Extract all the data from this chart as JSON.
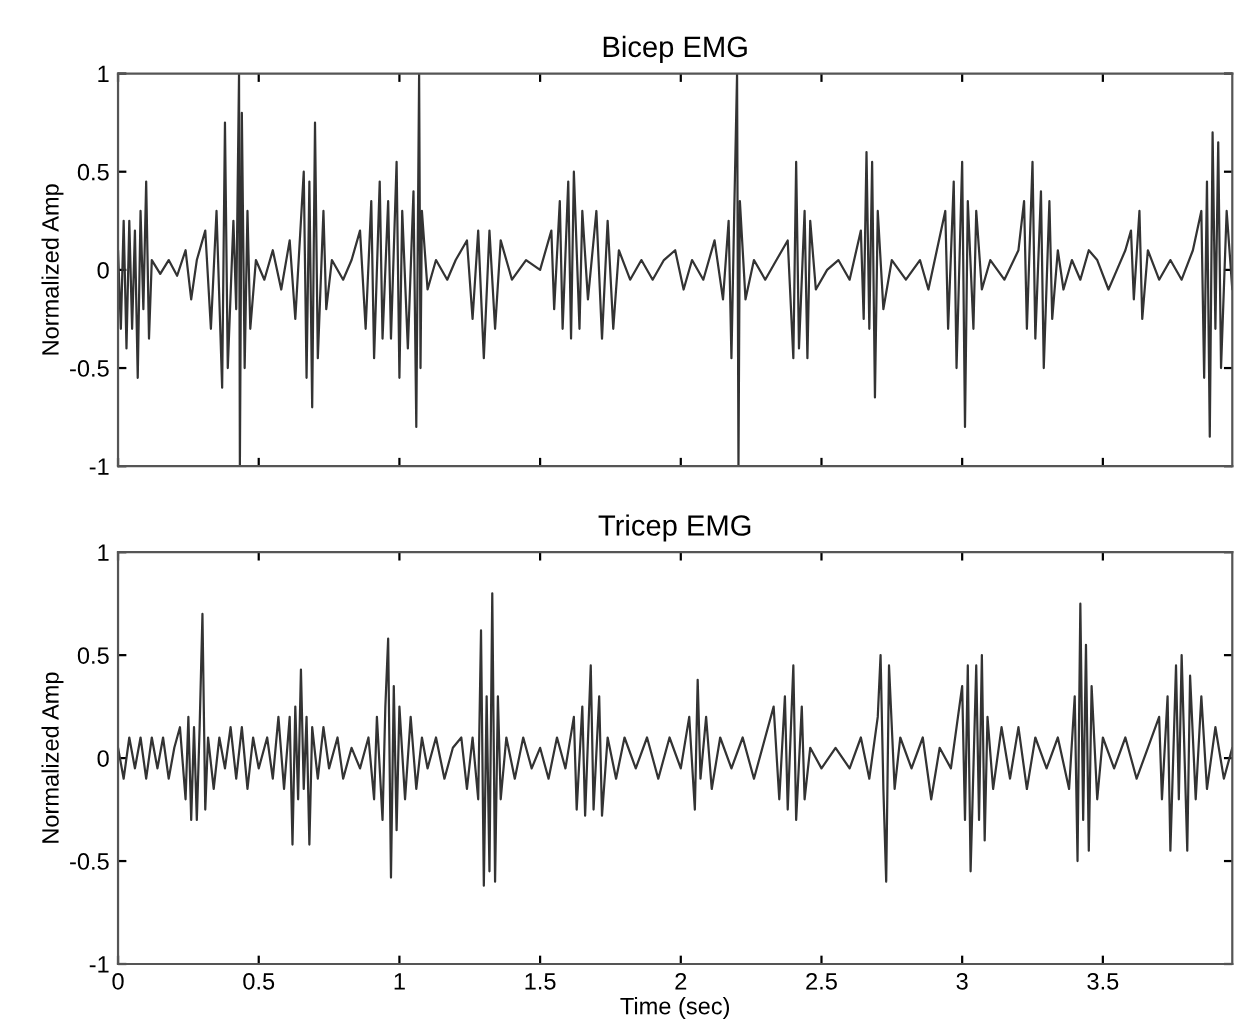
{
  "chart_data": [
    {
      "type": "line",
      "title": "Bicep EMG",
      "ylabel": "Normalized Amp",
      "xlim": [
        0,
        3.96
      ],
      "xticks": [
        0,
        0.5,
        1,
        1.5,
        2,
        2.5,
        3,
        3.5
      ],
      "ylim": [
        -1,
        1
      ],
      "yticks": [
        -1,
        -0.5,
        0,
        0.5,
        1
      ],
      "tick_labels": "y",
      "grid": false,
      "series": [
        {
          "color": "#333333",
          "x": [
            0.0,
            0.01,
            0.02,
            0.03,
            0.04,
            0.05,
            0.06,
            0.07,
            0.08,
            0.09,
            0.1,
            0.11,
            0.12,
            0.15,
            0.18,
            0.21,
            0.24,
            0.26,
            0.28,
            0.31,
            0.33,
            0.35,
            0.37,
            0.38,
            0.39,
            0.41,
            0.42,
            0.43,
            0.433,
            0.44,
            0.45,
            0.46,
            0.47,
            0.49,
            0.52,
            0.55,
            0.58,
            0.61,
            0.63,
            0.66,
            0.67,
            0.68,
            0.69,
            0.7,
            0.71,
            0.73,
            0.74,
            0.76,
            0.8,
            0.83,
            0.86,
            0.88,
            0.9,
            0.91,
            0.93,
            0.94,
            0.96,
            0.97,
            0.99,
            1.0,
            1.01,
            1.03,
            1.05,
            1.06,
            1.07,
            1.075,
            1.08,
            1.1,
            1.13,
            1.17,
            1.2,
            1.24,
            1.26,
            1.28,
            1.3,
            1.32,
            1.34,
            1.36,
            1.4,
            1.45,
            1.5,
            1.54,
            1.55,
            1.57,
            1.58,
            1.6,
            1.61,
            1.62,
            1.64,
            1.65,
            1.67,
            1.7,
            1.72,
            1.74,
            1.76,
            1.78,
            1.82,
            1.86,
            1.9,
            1.94,
            1.98,
            2.01,
            2.04,
            2.08,
            2.12,
            2.15,
            2.17,
            2.18,
            2.19,
            2.2,
            2.205,
            2.21,
            2.23,
            2.26,
            2.3,
            2.34,
            2.38,
            2.4,
            2.41,
            2.42,
            2.44,
            2.45,
            2.46,
            2.48,
            2.52,
            2.56,
            2.6,
            2.64,
            2.65,
            2.66,
            2.67,
            2.68,
            2.69,
            2.7,
            2.72,
            2.75,
            2.8,
            2.85,
            2.88,
            2.91,
            2.94,
            2.95,
            2.97,
            2.98,
            3.0,
            3.01,
            3.02,
            3.04,
            3.05,
            3.07,
            3.1,
            3.15,
            3.2,
            3.22,
            3.23,
            3.25,
            3.26,
            3.28,
            3.29,
            3.31,
            3.32,
            3.34,
            3.36,
            3.39,
            3.42,
            3.45,
            3.48,
            3.52,
            3.55,
            3.58,
            3.6,
            3.61,
            3.63,
            3.64,
            3.66,
            3.7,
            3.74,
            3.78,
            3.82,
            3.85,
            3.86,
            3.87,
            3.88,
            3.89,
            3.9,
            3.91,
            3.92,
            3.94,
            3.96
          ],
          "values": [
            0.1,
            -0.3,
            0.25,
            -0.4,
            0.25,
            -0.3,
            0.2,
            -0.55,
            0.3,
            -0.2,
            0.45,
            -0.35,
            0.05,
            -0.02,
            0.05,
            -0.03,
            0.1,
            -0.15,
            0.05,
            0.2,
            -0.3,
            0.3,
            -0.6,
            0.75,
            -0.5,
            0.25,
            -0.2,
            1.0,
            -1.0,
            0.8,
            -0.5,
            0.3,
            -0.3,
            0.05,
            -0.05,
            0.1,
            -0.1,
            0.15,
            -0.25,
            0.5,
            -0.55,
            0.45,
            -0.7,
            0.75,
            -0.45,
            0.3,
            -0.2,
            0.05,
            -0.05,
            0.05,
            0.2,
            -0.3,
            0.35,
            -0.45,
            0.45,
            -0.35,
            0.35,
            -0.35,
            0.55,
            -0.55,
            0.3,
            -0.4,
            0.4,
            -0.8,
            1.0,
            -0.5,
            0.3,
            -0.1,
            0.05,
            -0.05,
            0.05,
            0.15,
            -0.25,
            0.2,
            -0.45,
            0.2,
            -0.3,
            0.15,
            -0.05,
            0.05,
            0.0,
            0.2,
            -0.2,
            0.35,
            -0.3,
            0.45,
            -0.35,
            0.5,
            -0.3,
            0.3,
            -0.15,
            0.3,
            -0.35,
            0.25,
            -0.3,
            0.1,
            -0.05,
            0.05,
            -0.05,
            0.05,
            0.1,
            -0.1,
            0.05,
            -0.05,
            0.15,
            -0.15,
            0.25,
            -0.45,
            0.3,
            1.0,
            -1.0,
            0.35,
            -0.15,
            0.05,
            -0.05,
            0.05,
            0.15,
            -0.45,
            0.55,
            -0.4,
            0.3,
            -0.45,
            0.25,
            -0.1,
            0.0,
            0.05,
            -0.05,
            0.2,
            -0.25,
            0.6,
            -0.3,
            0.55,
            -0.65,
            0.3,
            -0.2,
            0.05,
            -0.05,
            0.05,
            -0.1,
            0.1,
            0.3,
            -0.3,
            0.45,
            -0.5,
            0.55,
            -0.8,
            0.35,
            -0.3,
            0.3,
            -0.1,
            0.05,
            -0.05,
            0.1,
            0.35,
            -0.3,
            0.55,
            -0.35,
            0.4,
            -0.5,
            0.35,
            -0.25,
            0.1,
            -0.1,
            0.05,
            -0.05,
            0.1,
            0.05,
            -0.1,
            0.0,
            0.1,
            0.2,
            -0.15,
            0.3,
            -0.25,
            0.1,
            -0.05,
            0.05,
            -0.05,
            0.1,
            0.3,
            -0.55,
            0.45,
            -0.85,
            0.7,
            -0.3,
            0.65,
            -0.5,
            0.3,
            -0.1
          ]
        }
      ]
    },
    {
      "type": "line",
      "title": "Tricep EMG",
      "xlabel": "Time (sec)",
      "ylabel": "Normalized Amp",
      "xlim": [
        0,
        3.96
      ],
      "xticks": [
        0,
        0.5,
        1,
        1.5,
        2,
        2.5,
        3,
        3.5
      ],
      "ylim": [
        -1,
        1
      ],
      "yticks": [
        -1,
        -0.5,
        0,
        0.5,
        1
      ],
      "grid": false,
      "series": [
        {
          "color": "#333333",
          "x": [
            0.0,
            0.02,
            0.04,
            0.06,
            0.08,
            0.1,
            0.12,
            0.14,
            0.16,
            0.18,
            0.2,
            0.22,
            0.24,
            0.25,
            0.26,
            0.27,
            0.28,
            0.29,
            0.3,
            0.31,
            0.32,
            0.34,
            0.36,
            0.38,
            0.4,
            0.42,
            0.44,
            0.46,
            0.48,
            0.5,
            0.53,
            0.55,
            0.57,
            0.59,
            0.61,
            0.62,
            0.63,
            0.64,
            0.65,
            0.66,
            0.67,
            0.68,
            0.69,
            0.71,
            0.73,
            0.75,
            0.78,
            0.8,
            0.83,
            0.86,
            0.89,
            0.91,
            0.92,
            0.94,
            0.95,
            0.96,
            0.97,
            0.98,
            0.99,
            1.0,
            1.02,
            1.04,
            1.06,
            1.08,
            1.1,
            1.13,
            1.16,
            1.19,
            1.22,
            1.24,
            1.26,
            1.28,
            1.29,
            1.3,
            1.31,
            1.32,
            1.33,
            1.34,
            1.35,
            1.36,
            1.38,
            1.41,
            1.44,
            1.47,
            1.5,
            1.53,
            1.56,
            1.59,
            1.62,
            1.63,
            1.65,
            1.66,
            1.68,
            1.69,
            1.71,
            1.72,
            1.74,
            1.77,
            1.8,
            1.84,
            1.88,
            1.92,
            1.96,
            2.0,
            2.03,
            2.05,
            2.06,
            2.07,
            2.09,
            2.11,
            2.14,
            2.18,
            2.22,
            2.26,
            2.3,
            2.33,
            2.35,
            2.37,
            2.38,
            2.4,
            2.41,
            2.43,
            2.44,
            2.46,
            2.5,
            2.55,
            2.6,
            2.64,
            2.67,
            2.7,
            2.71,
            2.72,
            2.73,
            2.74,
            2.76,
            2.78,
            2.82,
            2.86,
            2.89,
            2.92,
            2.96,
            3.0,
            3.01,
            3.02,
            3.03,
            3.05,
            3.06,
            3.07,
            3.08,
            3.09,
            3.11,
            3.14,
            3.17,
            3.2,
            3.23,
            3.26,
            3.3,
            3.34,
            3.38,
            3.4,
            3.41,
            3.42,
            3.43,
            3.44,
            3.45,
            3.46,
            3.48,
            3.5,
            3.54,
            3.58,
            3.62,
            3.66,
            3.7,
            3.71,
            3.73,
            3.74,
            3.76,
            3.77,
            3.78,
            3.8,
            3.81,
            3.83,
            3.85,
            3.87,
            3.9,
            3.93,
            3.96
          ],
          "values": [
            0.05,
            -0.1,
            0.1,
            -0.05,
            0.1,
            -0.1,
            0.1,
            -0.05,
            0.1,
            -0.1,
            0.05,
            0.15,
            -0.2,
            0.2,
            -0.3,
            0.15,
            -0.3,
            0.15,
            0.7,
            -0.25,
            0.1,
            -0.15,
            0.1,
            -0.05,
            0.15,
            -0.1,
            0.15,
            -0.15,
            0.1,
            -0.05,
            0.1,
            -0.1,
            0.2,
            -0.15,
            0.2,
            -0.42,
            0.25,
            -0.2,
            0.43,
            -0.15,
            0.2,
            -0.42,
            0.15,
            -0.1,
            0.15,
            -0.05,
            0.1,
            -0.1,
            0.05,
            -0.05,
            0.1,
            -0.2,
            0.2,
            -0.3,
            0.25,
            0.58,
            -0.58,
            0.35,
            -0.35,
            0.25,
            -0.2,
            0.2,
            -0.15,
            0.1,
            -0.05,
            0.1,
            -0.1,
            0.05,
            0.1,
            -0.15,
            0.1,
            -0.2,
            0.62,
            -0.62,
            0.3,
            -0.55,
            0.8,
            -0.6,
            0.3,
            -0.2,
            0.1,
            -0.1,
            0.1,
            -0.05,
            0.05,
            -0.1,
            0.1,
            -0.05,
            0.2,
            -0.25,
            0.25,
            -0.28,
            0.45,
            -0.25,
            0.3,
            -0.28,
            0.1,
            -0.1,
            0.1,
            -0.05,
            0.1,
            -0.1,
            0.1,
            -0.05,
            0.2,
            -0.25,
            0.38,
            -0.1,
            0.2,
            -0.15,
            0.1,
            -0.05,
            0.1,
            -0.1,
            0.1,
            0.25,
            -0.2,
            0.3,
            -0.25,
            0.45,
            -0.3,
            0.25,
            -0.2,
            0.05,
            -0.05,
            0.05,
            -0.05,
            0.1,
            -0.1,
            0.2,
            0.5,
            -0.15,
            -0.6,
            0.45,
            -0.15,
            0.1,
            -0.05,
            0.1,
            -0.2,
            0.05,
            -0.05,
            0.35,
            -0.3,
            0.45,
            -0.55,
            0.45,
            -0.3,
            0.5,
            -0.4,
            0.2,
            -0.15,
            0.15,
            -0.1,
            0.15,
            -0.15,
            0.1,
            -0.05,
            0.1,
            -0.15,
            0.3,
            -0.5,
            0.75,
            -0.3,
            0.55,
            -0.45,
            0.35,
            -0.2,
            0.1,
            -0.05,
            0.1,
            -0.1,
            0.05,
            0.2,
            -0.2,
            0.3,
            -0.45,
            0.45,
            -0.2,
            0.5,
            -0.45,
            0.4,
            -0.2,
            0.3,
            -0.15,
            0.15,
            -0.1,
            0.05
          ]
        }
      ]
    }
  ]
}
